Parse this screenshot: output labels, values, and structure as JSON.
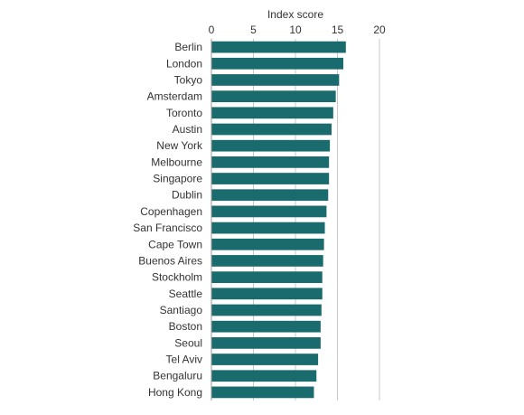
{
  "chart_data": {
    "type": "bar",
    "orientation": "horizontal",
    "title": "",
    "xlabel": "Index score",
    "ylabel": "",
    "xaxis_position": "top",
    "xlim": [
      0,
      20
    ],
    "xticks": [
      "0",
      "5",
      "10",
      "15",
      "20"
    ],
    "grid": true,
    "legend": "none",
    "bar_color": "#1a6b6e",
    "categories": [
      "Berlin",
      "London",
      "Tokyo",
      "Amsterdam",
      "Toronto",
      "Austin",
      "New York",
      "Melbourne",
      "Singapore",
      "Dublin",
      "Copenhagen",
      "San Francisco",
      "Cape Town",
      "Buenos Aires",
      "Stockholm",
      "Seattle",
      "Santiago",
      "Boston",
      "Seoul",
      "Tel Aviv",
      "Bengaluru",
      "Hong Kong"
    ],
    "values": [
      16.0,
      15.7,
      15.2,
      14.8,
      14.5,
      14.3,
      14.1,
      14.0,
      14.0,
      13.9,
      13.7,
      13.5,
      13.4,
      13.3,
      13.2,
      13.2,
      13.1,
      13.0,
      13.0,
      12.7,
      12.5,
      12.2
    ]
  }
}
